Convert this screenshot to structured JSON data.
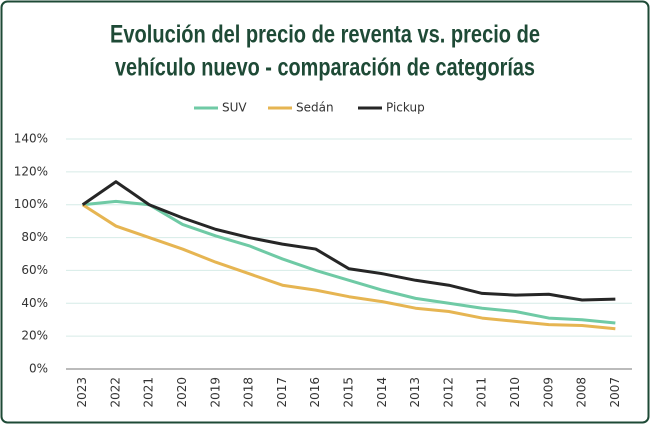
{
  "chart_data": {
    "type": "line",
    "title": [
      "Evolución del precio de reventa vs. precio de",
      "vehículo nuevo - comparación de categorías"
    ],
    "categories": [
      "2023",
      "2022",
      "2021",
      "2020",
      "2019",
      "2018",
      "2017",
      "2016",
      "2015",
      "2014",
      "2013",
      "2012",
      "2011",
      "2010",
      "2009",
      "2008",
      "2007"
    ],
    "series": [
      {
        "name": "SUV",
        "color": "#6fcaa5",
        "values": [
          100,
          102,
          100,
          88,
          81,
          75,
          67,
          60,
          54,
          48,
          43,
          40,
          37,
          35,
          31,
          30,
          28
        ]
      },
      {
        "name": "Sedán",
        "color": "#e6b552",
        "values": [
          100,
          87,
          80,
          73,
          65,
          58,
          51,
          48,
          44,
          41,
          37,
          35,
          31,
          29,
          27,
          26.5,
          24.5
        ]
      },
      {
        "name": "Pickup",
        "color": "#262626",
        "values": [
          100,
          114,
          100,
          92,
          85,
          80,
          76,
          73,
          61,
          58,
          54,
          51,
          46,
          45,
          45.5,
          42,
          42.5
        ]
      }
    ],
    "ylim": [
      0,
      140
    ],
    "yticks": [
      {
        "value": 0,
        "label": "0%"
      },
      {
        "value": 20,
        "label": "20%"
      },
      {
        "value": 40,
        "label": "40%"
      },
      {
        "value": 60,
        "label": "60%"
      },
      {
        "value": 80,
        "label": "80%"
      },
      {
        "value": 100,
        "label": "100%"
      },
      {
        "value": 120,
        "label": "120%"
      },
      {
        "value": 140,
        "label": "140%"
      }
    ],
    "grid": true,
    "legend": "top"
  }
}
